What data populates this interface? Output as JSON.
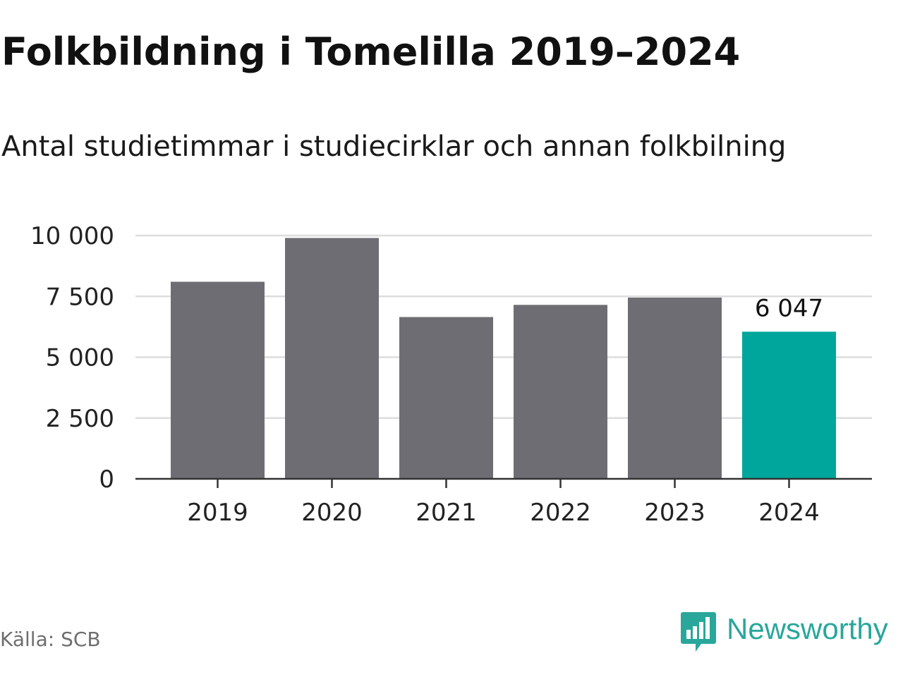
{
  "title": "Folkbildning i Tomelilla 2019–2024",
  "subtitle": "Antal studietimmar i studiecirklar och annan folkbilning",
  "source": "Källa: SCB",
  "brand": {
    "name": "Newsworthy",
    "logo_icon": "bar-chart-speech-bubble-icon"
  },
  "colors": {
    "bar_default": "#6e6d73",
    "bar_highlight": "#00a69b",
    "gridline": "#dddddd",
    "axis": "#333333",
    "brand": "#2aa79b"
  },
  "chart_data": {
    "type": "bar",
    "categories": [
      "2019",
      "2020",
      "2021",
      "2022",
      "2023",
      "2024"
    ],
    "values": [
      8100,
      9900,
      6650,
      7150,
      7450,
      6047
    ],
    "highlight_index": 5,
    "data_labels": [
      "",
      "",
      "",
      "",
      "",
      "6 047"
    ],
    "y_ticks": [
      0,
      2500,
      5000,
      7500,
      10000
    ],
    "y_tick_labels": [
      "0",
      "2 500",
      "5 000",
      "7 500",
      "10 000"
    ],
    "ylim": [
      0,
      10000
    ],
    "grid": true,
    "legend": "none",
    "xlabel": "",
    "ylabel": ""
  }
}
